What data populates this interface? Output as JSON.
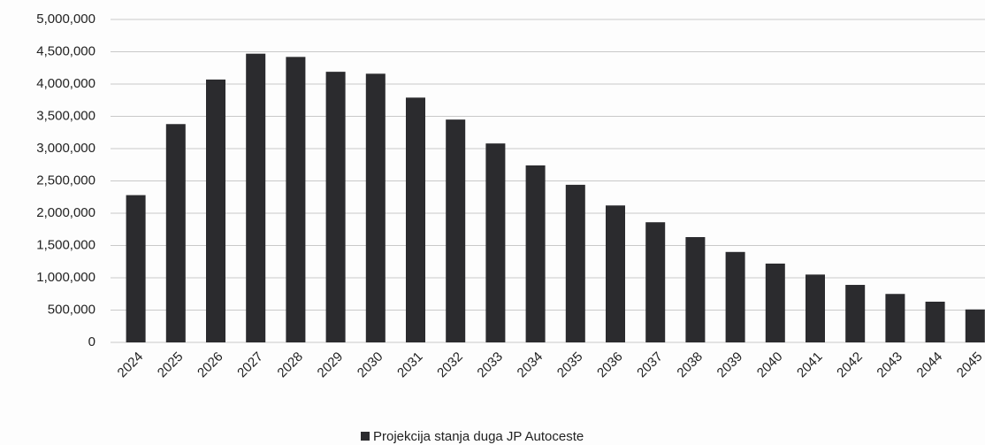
{
  "chart_data": {
    "type": "bar",
    "categories": [
      "2024",
      "2025",
      "2026",
      "2027",
      "2028",
      "2029",
      "2030",
      "2031",
      "2032",
      "2033",
      "2034",
      "2035",
      "2036",
      "2037",
      "2038",
      "2039",
      "2040",
      "2041",
      "2042",
      "2043",
      "2044",
      "2045"
    ],
    "series": [
      {
        "name": "Projekcija stanja duga JP Autoceste",
        "color": "#2b2b2e",
        "values": [
          2280000,
          3380000,
          4070000,
          4470000,
          4420000,
          4190000,
          4160000,
          3790000,
          3450000,
          3080000,
          2740000,
          2440000,
          2120000,
          1860000,
          1630000,
          1400000,
          1220000,
          1050000,
          890000,
          750000,
          630000,
          510000
        ]
      }
    ],
    "ylim": [
      0,
      5000000
    ],
    "yticks": [
      0,
      {
        "value": 500000,
        "label": "500,000"
      },
      {
        "value": 1000000,
        "label": "1,000,000"
      },
      {
        "value": 1500000,
        "label": "1,500,000"
      },
      {
        "value": 2000000,
        "label": "2,000,000"
      },
      {
        "value": 2500000,
        "label": "2,500,000"
      },
      {
        "value": 3000000,
        "label": "3,000,000"
      },
      {
        "value": 3500000,
        "label": "3,500,000"
      },
      {
        "value": 4000000,
        "label": "4,000,000"
      },
      {
        "value": 4500000,
        "label": "4,500,000"
      },
      {
        "value": 5000000,
        "label": "5,000,000"
      }
    ],
    "grid": true,
    "legend": "bottom"
  }
}
